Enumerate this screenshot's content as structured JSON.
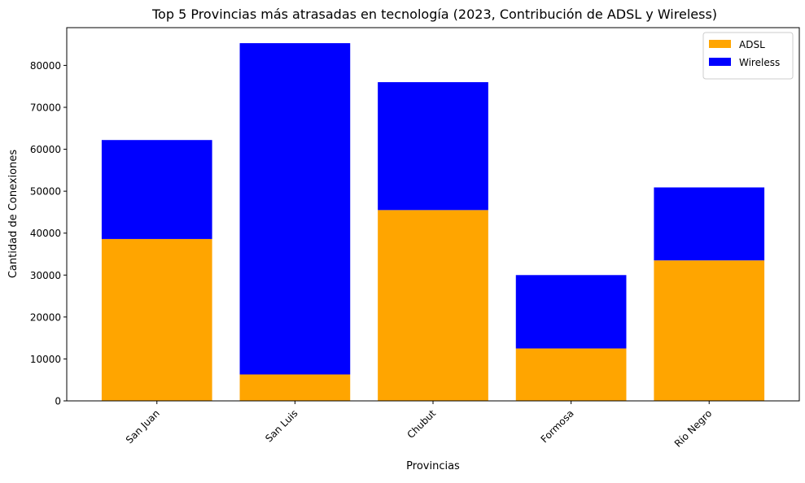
{
  "chart_data": {
    "type": "bar",
    "stacked": true,
    "title": "Top 5 Provincias más atrasadas en tecnología (2023, Contribución de ADSL y Wireless)",
    "xlabel": "Provincias",
    "ylabel": "Cantidad de Conexiones",
    "categories": [
      "San Juan",
      "San Luis",
      "Chubut",
      "Formosa",
      "Río Negro"
    ],
    "series": [
      {
        "name": "ADSL",
        "color": "#ffa500",
        "values": [
          38600,
          6300,
          45500,
          12500,
          33500
        ]
      },
      {
        "name": "Wireless",
        "color": "#0000ff",
        "values": [
          23600,
          79000,
          30500,
          17500,
          17400
        ]
      }
    ],
    "ylim": [
      0,
      89000
    ],
    "yticks": [
      0,
      10000,
      20000,
      30000,
      40000,
      50000,
      60000,
      70000,
      80000
    ],
    "legend": "top-right",
    "grid": false
  }
}
